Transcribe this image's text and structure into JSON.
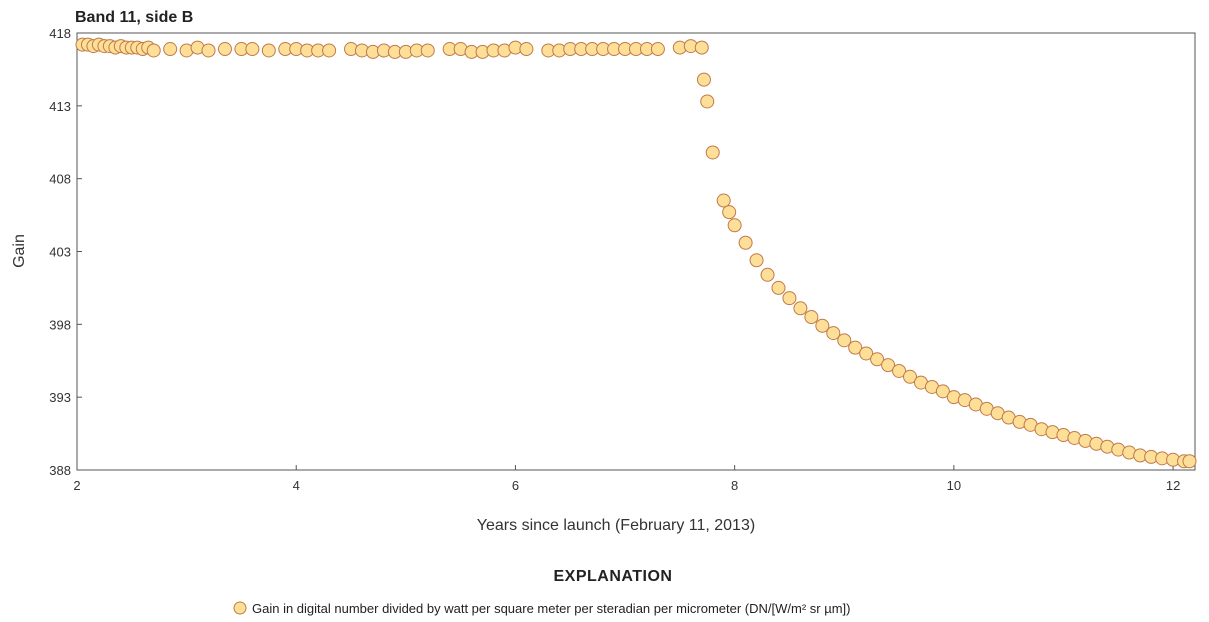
{
  "chart_data": {
    "type": "scatter",
    "title": "Band 11, side B",
    "xlabel": "Years since launch (February 11, 2013)",
    "ylabel": "Gain",
    "xlim": [
      2,
      12.2
    ],
    "ylim": [
      388,
      418
    ],
    "xticks": [
      2,
      4,
      6,
      8,
      10,
      12
    ],
    "yticks": [
      388,
      393,
      398,
      403,
      408,
      413,
      418
    ],
    "grid": false,
    "legend_title": "EXPLANATION",
    "series": [
      {
        "name": "Gain in digital number divided by watt per square meter per steradian per micrometer (DN/[W/m² sr µm])",
        "marker_fill": "#fddf97",
        "marker_edge": "#c07a4a",
        "x": [
          2.05,
          2.1,
          2.15,
          2.2,
          2.25,
          2.3,
          2.35,
          2.4,
          2.45,
          2.5,
          2.55,
          2.6,
          2.65,
          2.7,
          2.85,
          3.0,
          3.1,
          3.2,
          3.35,
          3.5,
          3.6,
          3.75,
          3.9,
          4.0,
          4.1,
          4.2,
          4.3,
          4.5,
          4.6,
          4.7,
          4.8,
          4.9,
          5.0,
          5.1,
          5.2,
          5.4,
          5.5,
          5.6,
          5.7,
          5.8,
          5.9,
          6.0,
          6.1,
          6.3,
          6.4,
          6.5,
          6.6,
          6.7,
          6.8,
          6.9,
          7.0,
          7.1,
          7.2,
          7.3,
          7.5,
          7.6,
          7.7,
          7.72,
          7.75,
          7.8,
          7.9,
          7.95,
          8.0,
          8.1,
          8.2,
          8.3,
          8.4,
          8.5,
          8.6,
          8.7,
          8.8,
          8.9,
          9.0,
          9.1,
          9.2,
          9.3,
          9.4,
          9.5,
          9.6,
          9.7,
          9.8,
          9.9,
          10.0,
          10.1,
          10.2,
          10.3,
          10.4,
          10.5,
          10.6,
          10.7,
          10.8,
          10.9,
          11.0,
          11.1,
          11.2,
          11.3,
          11.4,
          11.5,
          11.6,
          11.7,
          11.8,
          11.9,
          12.0,
          12.1,
          12.15
        ],
        "y": [
          417.2,
          417.2,
          417.1,
          417.2,
          417.1,
          417.1,
          417.0,
          417.1,
          417.0,
          417.0,
          417.0,
          416.9,
          417.0,
          416.8,
          416.9,
          416.8,
          417.0,
          416.8,
          416.9,
          416.9,
          416.9,
          416.8,
          416.9,
          416.9,
          416.8,
          416.8,
          416.8,
          416.9,
          416.8,
          416.7,
          416.8,
          416.7,
          416.7,
          416.8,
          416.8,
          416.9,
          416.9,
          416.7,
          416.7,
          416.8,
          416.8,
          417.0,
          416.9,
          416.8,
          416.8,
          416.9,
          416.9,
          416.9,
          416.9,
          416.9,
          416.9,
          416.9,
          416.9,
          416.9,
          417.0,
          417.1,
          417.0,
          414.8,
          413.3,
          409.8,
          406.5,
          405.7,
          404.8,
          403.6,
          402.4,
          401.4,
          400.5,
          399.8,
          399.1,
          398.5,
          397.9,
          397.4,
          396.9,
          396.4,
          396.0,
          395.6,
          395.2,
          394.8,
          394.4,
          394.0,
          393.7,
          393.4,
          393.0,
          392.8,
          392.5,
          392.2,
          391.9,
          391.6,
          391.3,
          391.1,
          390.8,
          390.6,
          390.4,
          390.2,
          390.0,
          389.8,
          389.6,
          389.4,
          389.2,
          389.0,
          388.9,
          388.8,
          388.7,
          388.6,
          388.6
        ]
      }
    ]
  }
}
